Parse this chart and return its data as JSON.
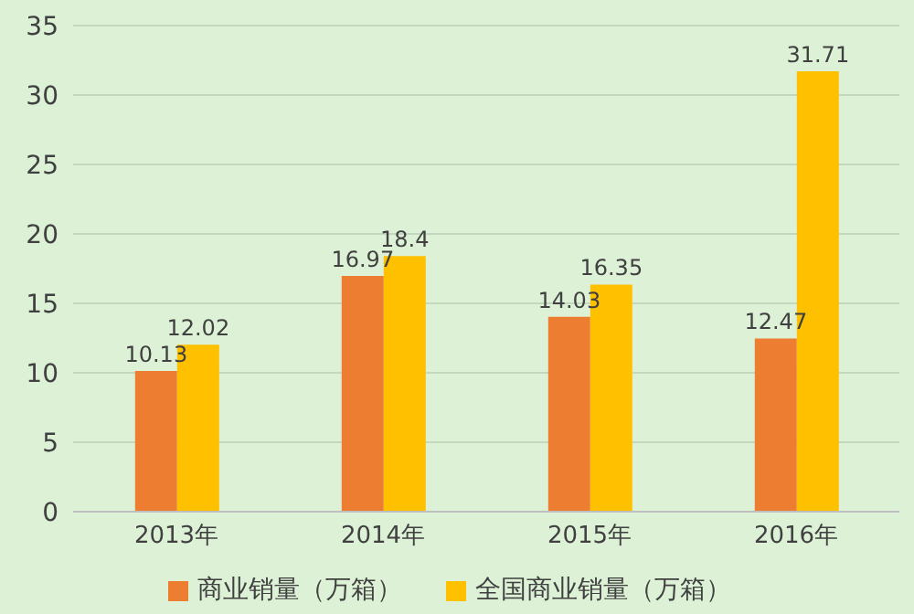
{
  "chart_data": {
    "type": "bar",
    "categories": [
      "2013年",
      "2014年",
      "2015年",
      "2016年"
    ],
    "series": [
      {
        "name": "商业销量（万箱）",
        "color": "#ed7d31",
        "values": [
          10.13,
          16.97,
          14.03,
          12.47
        ]
      },
      {
        "name": "全国商业销量（万箱）",
        "color": "#ffc000",
        "values": [
          12.02,
          18.4,
          16.35,
          31.71
        ]
      }
    ],
    "ylim": [
      0,
      35
    ],
    "yticks": [
      0,
      5,
      10,
      15,
      20,
      25,
      30,
      35
    ],
    "grid": "y",
    "legend": "bottom",
    "data_labels": true
  }
}
